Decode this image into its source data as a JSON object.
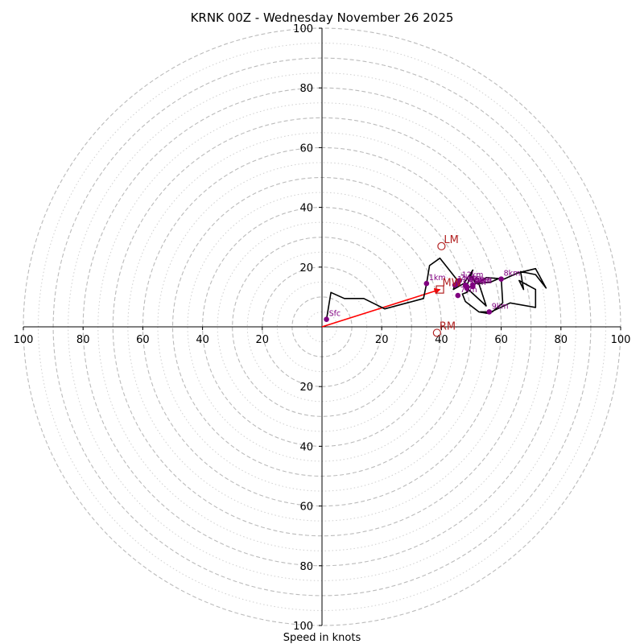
{
  "title": "KRNK 00Z - Wednesday November 26 2025",
  "xlabel": "Speed in knots",
  "colors": {
    "hodograph_line": "#000000",
    "level_marker": "#800080",
    "storm_motion": "#b22222",
    "mean_wind_arrow": "#ff0000",
    "rings": "#bbbbbb"
  },
  "chart_data": {
    "type": "hodograph",
    "units": "knots",
    "range": [
      -100,
      100
    ],
    "ticks": {
      "up": [
        "20",
        "40",
        "60",
        "80",
        "100"
      ],
      "down": [
        "20",
        "40",
        "60",
        "80",
        "100"
      ],
      "left": [
        "20",
        "40",
        "60",
        "80",
        "100"
      ],
      "right": [
        "20",
        "40",
        "60",
        "80",
        "100"
      ]
    },
    "rings_dashed": [
      10,
      20,
      30,
      40,
      50,
      60,
      70,
      80,
      90,
      100
    ],
    "rings_dotted": [
      5,
      15,
      25,
      35,
      45,
      55,
      65,
      75,
      85,
      95
    ],
    "hodograph": [
      [
        1.5,
        2.5
      ],
      [
        3,
        11.5
      ],
      [
        7.5,
        9.5
      ],
      [
        14,
        9.5
      ],
      [
        18,
        7.5
      ],
      [
        21,
        6
      ],
      [
        34,
        9.5
      ],
      [
        35,
        14.5
      ],
      [
        36,
        20.5
      ],
      [
        39.5,
        23
      ],
      [
        45,
        16
      ],
      [
        44,
        12.5
      ],
      [
        47.5,
        14.5
      ],
      [
        50.5,
        19
      ],
      [
        48,
        12.5
      ],
      [
        51.5,
        14.5
      ],
      [
        49.5,
        17.5
      ],
      [
        52,
        14.5
      ],
      [
        55,
        16.5
      ],
      [
        61,
        16
      ],
      [
        65.5,
        18
      ],
      [
        71.5,
        19.5
      ],
      [
        75,
        13
      ],
      [
        71.5,
        17.5
      ],
      [
        66.5,
        18.5
      ],
      [
        67.5,
        12.5
      ],
      [
        66,
        15.5
      ],
      [
        71.5,
        12.5
      ],
      [
        71.5,
        6.5
      ],
      [
        63,
        8
      ],
      [
        55.5,
        4.5
      ],
      [
        52.5,
        5
      ],
      [
        48,
        8.5
      ],
      [
        47,
        11
      ],
      [
        48.5,
        11.5
      ],
      [
        49,
        12.5
      ],
      [
        55,
        7
      ],
      [
        52.5,
        14.5
      ],
      [
        56.5,
        15
      ],
      [
        60,
        16.5
      ],
      [
        60.5,
        8
      ],
      [
        57,
        5
      ],
      [
        53,
        5
      ]
    ],
    "levels": [
      {
        "label": "Sfc",
        "u": 1.5,
        "v": 2.5
      },
      {
        "label": "1km",
        "u": 35,
        "v": 14.5
      },
      {
        "label": "2km",
        "u": 45.5,
        "v": 14.5
      },
      {
        "label": "3km",
        "u": 48,
        "v": 14
      },
      {
        "label": "4km",
        "u": 50.5,
        "v": 13.5
      },
      {
        "label": "5km",
        "u": 48.5,
        "v": 13
      },
      {
        "label": "6km",
        "u": 50.5,
        "v": 14
      },
      {
        "label": "7km",
        "u": 45.5,
        "v": 10.5
      },
      {
        "label": "8km",
        "u": 60,
        "v": 16
      },
      {
        "label": "9km",
        "u": 56,
        "v": 5
      },
      {
        "label": "10km",
        "u": 48.5,
        "v": 13.5
      },
      {
        "label": "11km",
        "u": 44.5,
        "v": 14
      },
      {
        "label": "12km",
        "u": 46,
        "v": 15.5
      }
    ],
    "storm_motion": [
      {
        "label": "LM",
        "u": 40,
        "v": 27,
        "marker": "circle"
      },
      {
        "label": "RM",
        "u": 38.5,
        "v": -2,
        "marker": "circle"
      },
      {
        "label": "MW",
        "u": 39.5,
        "v": 12.5,
        "marker": "square"
      }
    ],
    "mean_wind_arrow": {
      "from": [
        0,
        0
      ],
      "to": [
        39.5,
        12.5
      ]
    }
  }
}
